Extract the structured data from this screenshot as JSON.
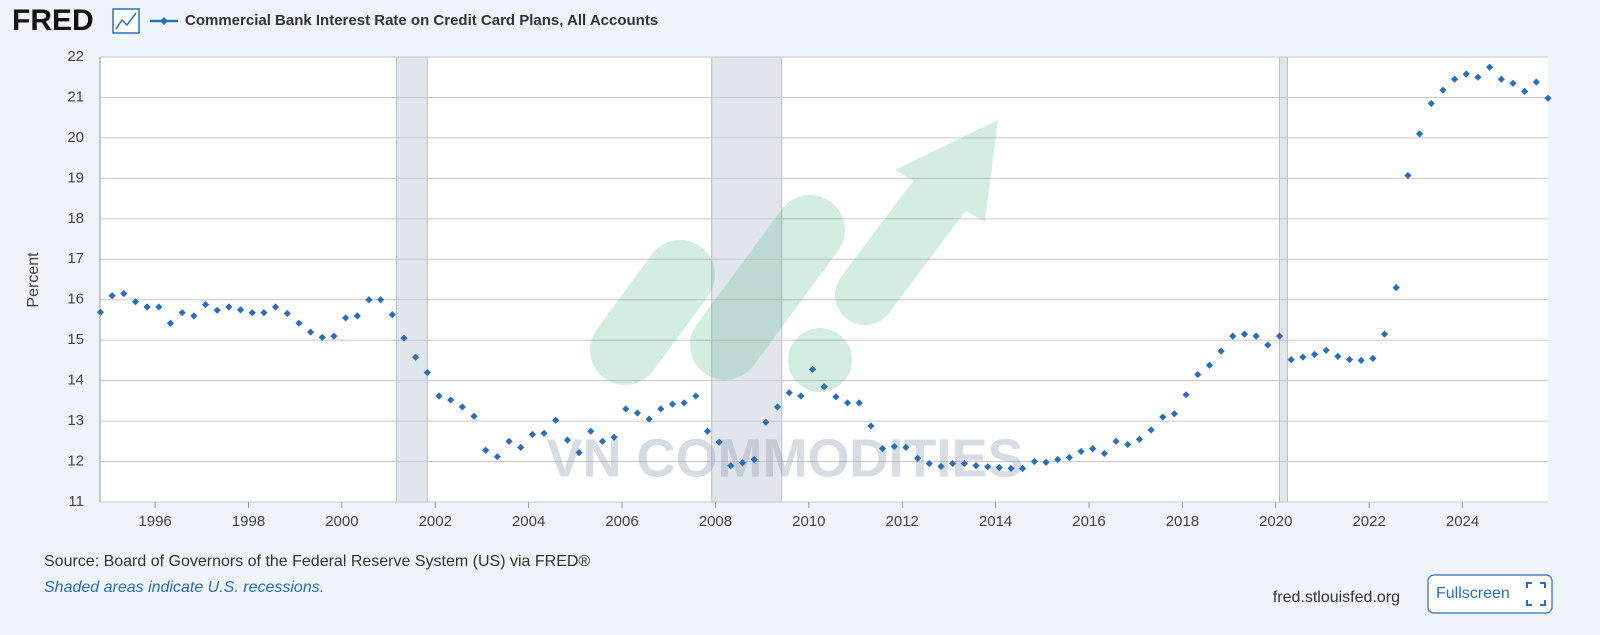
{
  "header": {
    "logo": "FRED"
  },
  "watermark": "VN COMMODITIES",
  "chart_data": {
    "type": "scatter",
    "ylabel": "Percent",
    "xlim": [
      1994.82,
      2025.83
    ],
    "ylim": [
      11,
      22
    ],
    "xticks": [
      1996,
      1998,
      2000,
      2002,
      2004,
      2006,
      2008,
      2010,
      2012,
      2014,
      2016,
      2018,
      2020,
      2022,
      2024
    ],
    "yticks": [
      11,
      12,
      13,
      14,
      15,
      16,
      17,
      18,
      19,
      20,
      21,
      22
    ],
    "grid": true,
    "recessions": [
      [
        2001.17,
        2001.83
      ],
      [
        2007.92,
        2009.42
      ],
      [
        2020.08,
        2020.25
      ]
    ],
    "x": [
      1994.83,
      1995.08,
      1995.33,
      1995.58,
      1995.83,
      1996.08,
      1996.33,
      1996.58,
      1996.83,
      1997.08,
      1997.33,
      1997.58,
      1997.83,
      1998.08,
      1998.33,
      1998.58,
      1998.83,
      1999.08,
      1999.33,
      1999.58,
      1999.83,
      2000.08,
      2000.33,
      2000.58,
      2000.83,
      2001.08,
      2001.33,
      2001.58,
      2001.83,
      2002.08,
      2002.33,
      2002.58,
      2002.83,
      2003.08,
      2003.33,
      2003.58,
      2003.83,
      2004.08,
      2004.33,
      2004.58,
      2004.83,
      2005.08,
      2005.33,
      2005.58,
      2005.83,
      2006.08,
      2006.33,
      2006.58,
      2006.83,
      2007.08,
      2007.33,
      2007.58,
      2007.83,
      2008.08,
      2008.33,
      2008.58,
      2008.83,
      2009.08,
      2009.33,
      2009.58,
      2009.83,
      2010.08,
      2010.33,
      2010.58,
      2010.83,
      2011.08,
      2011.33,
      2011.58,
      2011.83,
      2012.08,
      2012.33,
      2012.58,
      2012.83,
      2013.08,
      2013.33,
      2013.58,
      2013.83,
      2014.08,
      2014.33,
      2014.58,
      2014.83,
      2015.08,
      2015.33,
      2015.58,
      2015.83,
      2016.08,
      2016.33,
      2016.58,
      2016.83,
      2017.08,
      2017.33,
      2017.58,
      2017.83,
      2018.08,
      2018.33,
      2018.58,
      2018.83,
      2019.08,
      2019.33,
      2019.58,
      2019.83,
      2020.08,
      2020.33,
      2020.58,
      2020.83,
      2021.08,
      2021.33,
      2021.58,
      2021.83,
      2022.08,
      2022.33,
      2022.58,
      2022.83,
      2023.08,
      2023.33,
      2023.58,
      2023.83,
      2024.08,
      2024.33,
      2024.58,
      2024.83,
      2025.08,
      2025.33,
      2025.58,
      2025.83
    ],
    "series": [
      {
        "name": "Commercial Bank Interest Rate on Credit Card Plans, All Accounts",
        "color": "#2a6ebb",
        "values": [
          15.69,
          16.1,
          16.15,
          15.95,
          15.82,
          15.82,
          15.42,
          15.68,
          15.6,
          15.88,
          15.74,
          15.82,
          15.75,
          15.68,
          15.68,
          15.82,
          15.66,
          15.42,
          15.2,
          15.07,
          15.1,
          15.55,
          15.6,
          16.0,
          16.0,
          15.63,
          15.05,
          14.58,
          14.2,
          13.62,
          13.52,
          13.35,
          13.12,
          12.28,
          12.12,
          12.5,
          12.35,
          12.67,
          12.7,
          13.02,
          12.53,
          12.22,
          12.75,
          12.5,
          12.6,
          13.3,
          13.2,
          13.05,
          13.3,
          13.42,
          13.45,
          13.62,
          12.75,
          12.48,
          11.9,
          11.97,
          12.05,
          12.97,
          13.35,
          13.7,
          13.62,
          14.28,
          13.85,
          13.6,
          13.45,
          13.45,
          12.88,
          12.32,
          12.37,
          12.35,
          12.08,
          11.95,
          11.88,
          11.95,
          11.95,
          11.9,
          11.87,
          11.85,
          11.83,
          11.83,
          12.0,
          11.98,
          12.05,
          12.1,
          12.25,
          12.32,
          12.2,
          12.5,
          12.42,
          12.55,
          12.78,
          13.1,
          13.18,
          13.65,
          14.15,
          14.38,
          14.73,
          15.1,
          15.15,
          15.1,
          14.88,
          15.1,
          14.52,
          14.58,
          14.65,
          14.75,
          14.6,
          14.52,
          14.5,
          14.55,
          15.15,
          16.3,
          19.07,
          20.1,
          20.85,
          21.18,
          21.45,
          21.58,
          21.5,
          21.75,
          21.45,
          21.35,
          21.15,
          21.38,
          20.98
        ]
      }
    ]
  },
  "footer": {
    "source": "Source: Board of Governors of the Federal Reserve System (US) via FRED®",
    "note": "Shaded areas indicate U.S. recessions.",
    "site": "fred.stlouisfed.org",
    "button": "Fullscreen"
  }
}
